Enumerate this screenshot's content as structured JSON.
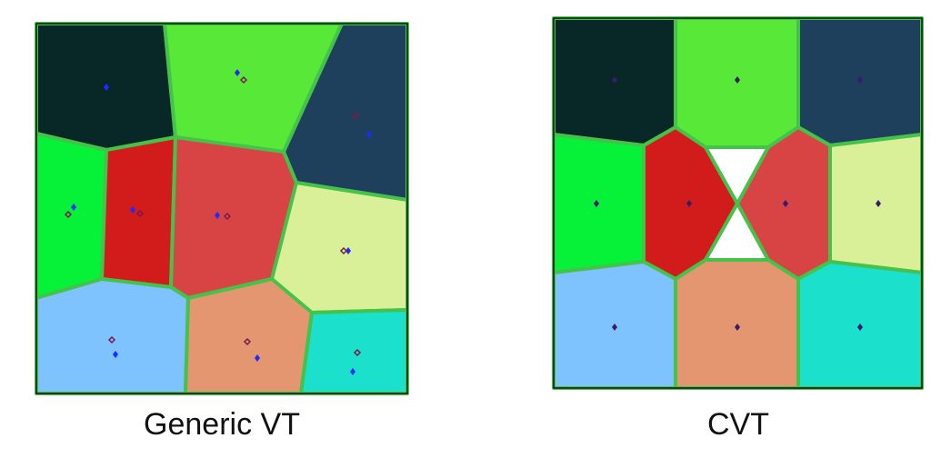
{
  "captions": {
    "left": "Generic VT",
    "right": "CVT"
  },
  "colors": {
    "edge": "#44c24a",
    "frame": "#111111",
    "generator_dot": "#1a2cff",
    "centroid_ring": "#7a1a4a",
    "cvt_dot": "#3a1a6a",
    "cells": {
      "dark_teal": "#082828",
      "lime": "#58e838",
      "navy": "#1f405c",
      "green": "#06f238",
      "red": "#d21c1c",
      "coral": "#d84444",
      "pale_yellow": "#daf098",
      "sky": "#7ec2fe",
      "salmon": "#e49670",
      "cyan": "#1ae0cc"
    }
  },
  "panels": [
    {
      "id": "generic-vt",
      "caption_key": "left",
      "cells": [
        "dark_teal",
        "lime",
        "navy",
        "green",
        "red",
        "coral",
        "pale_yellow",
        "sky",
        "salmon",
        "cyan"
      ]
    },
    {
      "id": "cvt",
      "caption_key": "right",
      "cells": [
        "dark_teal",
        "lime",
        "navy",
        "green",
        "red",
        "coral",
        "pale_yellow",
        "sky",
        "salmon",
        "cyan"
      ]
    }
  ]
}
